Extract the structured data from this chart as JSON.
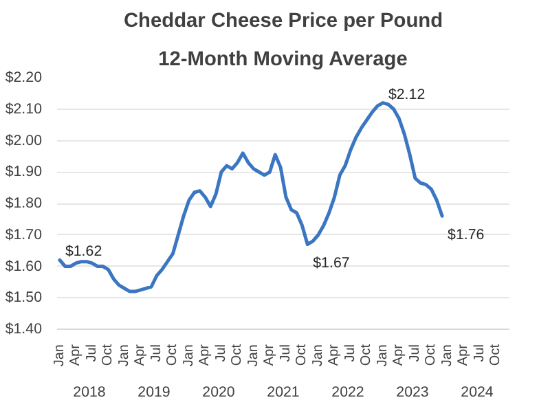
{
  "chart_data": {
    "type": "line",
    "title": "Cheddar Cheese Price per Pound",
    "subtitle": "12-Month Moving Average",
    "categories": [
      "Jan",
      null,
      null,
      "Apr",
      null,
      null,
      "Jul",
      null,
      null,
      "Oct",
      null,
      null,
      "Jan",
      null,
      null,
      "Apr",
      null,
      null,
      "Jul",
      null,
      null,
      "Oct",
      null,
      null,
      "Jan",
      null,
      null,
      "Apr",
      null,
      null,
      "Jul",
      null,
      null,
      "Oct",
      null,
      null,
      "Jan",
      null,
      null,
      "Apr",
      null,
      null,
      "Jul",
      null,
      null,
      "Oct",
      null,
      null,
      "Jan",
      null,
      null,
      "Apr",
      null,
      null,
      "Jul",
      null,
      null,
      "Oct",
      null,
      null,
      "Jan",
      null,
      null,
      "Apr",
      null,
      null,
      "Jul",
      null,
      null,
      "Oct",
      null,
      null,
      "Jan",
      null,
      null,
      "Apr",
      null,
      null,
      "Jul",
      null,
      null,
      "Oct",
      null,
      null
    ],
    "annotations": [
      "2018",
      "2019",
      "2020",
      "2021",
      "2022",
      "2023",
      "2024"
    ],
    "series": [
      {
        "color": "#3b76c2",
        "values": [
          1.62,
          1.6,
          1.6,
          1.61,
          1.615,
          1.615,
          1.61,
          1.6,
          1.6,
          1.59,
          1.56,
          1.54,
          1.53,
          1.52,
          1.52,
          1.525,
          1.53,
          1.535,
          1.57,
          1.59,
          1.615,
          1.64,
          1.7,
          1.76,
          1.81,
          1.835,
          1.84,
          1.82,
          1.79,
          1.83,
          1.9,
          1.92,
          1.91,
          1.93,
          1.96,
          1.93,
          1.91,
          1.9,
          1.89,
          1.9,
          1.955,
          1.915,
          1.82,
          1.78,
          1.77,
          1.73,
          1.67,
          1.68,
          1.7,
          1.73,
          1.77,
          1.82,
          1.89,
          1.92,
          1.97,
          2.01,
          2.04,
          2.065,
          2.09,
          2.11,
          2.12,
          2.115,
          2.1,
          2.07,
          2.02,
          1.955,
          1.88,
          1.865,
          1.86,
          1.845,
          1.81,
          1.76,
          null,
          null,
          null,
          null,
          null,
          null,
          null,
          null,
          null,
          null,
          null,
          null
        ],
        "value_labels": [
          "$1.62",
          null,
          null,
          null,
          null,
          null,
          null,
          null,
          null,
          null,
          null,
          null,
          null,
          null,
          null,
          null,
          null,
          null,
          null,
          null,
          null,
          null,
          null,
          null,
          null,
          null,
          null,
          null,
          null,
          null,
          null,
          null,
          null,
          null,
          null,
          null,
          null,
          null,
          null,
          null,
          null,
          null,
          null,
          null,
          null,
          null,
          "$1.67",
          null,
          null,
          null,
          null,
          null,
          null,
          null,
          null,
          null,
          null,
          null,
          null,
          null,
          "$2.12",
          null,
          null,
          null,
          null,
          null,
          null,
          null,
          null,
          null,
          null,
          "$1.76",
          null,
          null,
          null,
          null,
          null,
          null,
          null,
          null,
          null,
          null,
          null,
          null
        ]
      }
    ],
    "ylim": [
      1.4,
      2.2
    ],
    "yticks": [
      {
        "value": 1.4,
        "label": "$1.40"
      },
      {
        "value": 1.5,
        "label": "$1.50"
      },
      {
        "value": 1.6,
        "label": "$1.60"
      },
      {
        "value": 1.7,
        "label": "$1.70"
      },
      {
        "value": 1.8,
        "label": "$1.80"
      },
      {
        "value": 1.9,
        "label": "$1.90"
      },
      {
        "value": 2.0,
        "label": "$2.00"
      },
      {
        "value": 2.1,
        "label": "$2.10"
      },
      {
        "value": 2.2,
        "label": "$2.20"
      }
    ],
    "grid": "y",
    "line_style": "solid",
    "marker": "none"
  }
}
